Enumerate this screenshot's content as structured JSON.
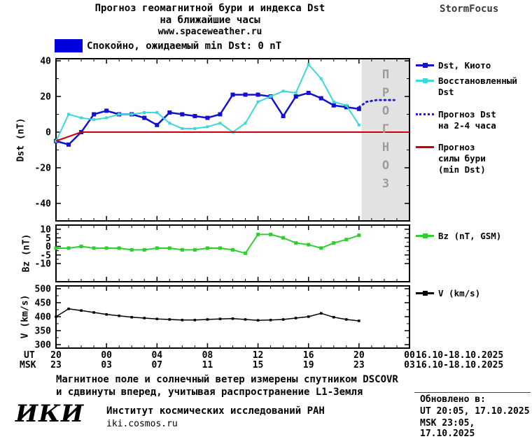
{
  "title": {
    "line1": "Прогноз геомагнитной бури и индекса Dst",
    "line2": "на ближайшие часы",
    "url": "www.spaceweather.ru"
  },
  "brand": "StormFocus",
  "status": {
    "label": "Спокойно, ожидаемый min Dst: 0 nT",
    "box_color": "#0000dd"
  },
  "colors": {
    "dst_kyoto": "#1212cc",
    "dst_restored": "#3cd8d8",
    "dst_forecast": "#1a1ae0",
    "storm_forecast": "#cc0000",
    "bz": "#33cc33",
    "v": "#000000",
    "forecast_region": "#e2e2e2",
    "watermark": "#9c9c9c"
  },
  "watermark": "ПРОГНОЗ",
  "axes": {
    "dst_label": "Dst (nT)",
    "bz_label": "Bz (nT)",
    "v_label": "V (km/s)"
  },
  "xaxis": {
    "tick_hours": [
      0,
      4,
      8,
      12,
      16,
      20,
      24,
      28
    ],
    "ut_prefix": "UT",
    "msk_prefix": "MSK",
    "ut_labels": [
      "20",
      "00",
      "04",
      "08",
      "12",
      "16",
      "20",
      "00"
    ],
    "msk_labels": [
      "23",
      "03",
      "07",
      "11",
      "15",
      "19",
      "23",
      "03"
    ],
    "ut_daterange": "16.10-18.10.2025",
    "msk_daterange": "16.10-18.10.2025"
  },
  "legend_entries": [
    {
      "id": "dst-kyoto",
      "label_lines": [
        "Dst, Киото"
      ],
      "color": "#1212cc",
      "style": "solid",
      "marker": true
    },
    {
      "id": "dst-restored",
      "label_lines": [
        "Восстановленный",
        "Dst"
      ],
      "color": "#3cd8d8",
      "style": "solid",
      "marker": true
    },
    {
      "id": "dst-forecast",
      "label_lines": [
        "Прогноз Dst",
        "на 2-4 часа"
      ],
      "color": "#1a1ae0",
      "style": "dotted",
      "marker": false
    },
    {
      "id": "storm-forecast",
      "label_lines": [
        "Прогноз",
        "силы бури",
        "(min Dst)"
      ],
      "color": "#cc0000",
      "style": "solid",
      "marker": false
    },
    {
      "id": "bz",
      "label_lines": [
        "Bz (nT, GSM)"
      ],
      "color": "#33cc33",
      "style": "solid",
      "marker": true
    },
    {
      "id": "v",
      "label_lines": [
        "V (km/s)"
      ],
      "color": "#000000",
      "style": "solid",
      "marker": true
    }
  ],
  "footnote": {
    "line1": "Магнитное поле и солнечный ветер измерены спутником DSCOVR",
    "line2": "и сдвинуты вперед, учитывая распространение L1-Земля"
  },
  "footer": {
    "logo": "ИКИ",
    "institute": "Институт космических исследований РАН",
    "site": "iki.cosmos.ru",
    "updated_label": "Обновлено в:",
    "updated_ut": "UT  20:05, 17.10.2025",
    "updated_msk": "MSK 23:05, 17.10.2025"
  },
  "chart_data": {
    "type": "line",
    "xlim_hours": [
      0,
      28
    ],
    "x_note": "hours along shared axis; ticks labeled in UT and MSK",
    "panels": [
      {
        "name": "Dst",
        "ylabel": "Dst (nT)",
        "yticks": [
          40,
          20,
          0,
          -20,
          -40
        ],
        "forecast_region": {
          "x_start": 24.2,
          "x_end": 28,
          "color": "#e2e2e2"
        },
        "series": [
          {
            "name": "dst-kyoto",
            "label": "Dst, Киото",
            "color": "#1212cc",
            "width": 2.5,
            "marker": "square",
            "marker_size": 6,
            "x": [
              0,
              1,
              2,
              3,
              4,
              5,
              6,
              7,
              8,
              9,
              10,
              11,
              12,
              13,
              14,
              15,
              16,
              17,
              18,
              19,
              20,
              21,
              22,
              23,
              24
            ],
            "y": [
              -5,
              -7,
              0,
              10,
              12,
              10,
              10,
              8,
              4,
              11,
              10,
              9,
              8,
              10,
              21,
              21,
              21,
              20,
              9,
              20,
              22,
              19,
              15,
              14,
              13
            ]
          },
          {
            "name": "dst-restored",
            "label": "Восстановленный Dst",
            "color": "#3cd8d8",
            "width": 2,
            "marker": "square",
            "marker_size": 4,
            "x": [
              0,
              1,
              2,
              3,
              4,
              5,
              6,
              7,
              8,
              9,
              10,
              11,
              12,
              13,
              14,
              15,
              16,
              17,
              18,
              19,
              20,
              21,
              22,
              23,
              24
            ],
            "y": [
              -5,
              10,
              8,
              7,
              8,
              10,
              10,
              11,
              11,
              5,
              2,
              2,
              3,
              5,
              0,
              5,
              17,
              20,
              23,
              22,
              38,
              30,
              17,
              15,
              4
            ]
          },
          {
            "name": "dst-forecast",
            "label": "Прогноз Dst на 2-4 часа",
            "color": "#1a1ae0",
            "width": 3,
            "dash": "1.5 5",
            "x": [
              24,
              24.6,
              25.4,
              26.2,
              26.8
            ],
            "y": [
              14,
              17,
              18,
              18,
              18
            ]
          },
          {
            "name": "storm-forecast",
            "label": "Прогноз силы бури (min Dst)",
            "color": "#cc0000",
            "width": 2,
            "x": [
              0,
              2,
              28
            ],
            "y": [
              -5,
              0,
              0
            ]
          }
        ]
      },
      {
        "name": "Bz",
        "ylabel": "Bz (nT)",
        "yticks": [
          10,
          5,
          0,
          -5,
          -10
        ],
        "series": [
          {
            "name": "bz",
            "label": "Bz (nT, GSM)",
            "color": "#33cc33",
            "width": 2,
            "marker": "square",
            "marker_size": 5,
            "x": [
              0,
              1,
              2,
              3,
              4,
              5,
              6,
              7,
              8,
              9,
              10,
              11,
              12,
              13,
              14,
              15,
              16,
              17,
              18,
              19,
              20,
              21,
              22,
              23,
              24
            ],
            "y": [
              -1,
              -1,
              0,
              -1,
              -1,
              -1,
              -2,
              -2,
              -1,
              -1,
              -2,
              -2,
              -1,
              -1,
              -2,
              -4,
              7,
              7,
              5,
              2,
              1,
              -1,
              2,
              4,
              6.5
            ]
          }
        ]
      },
      {
        "name": "V",
        "ylabel": "V (km/s)",
        "yticks": [
          500,
          450,
          400,
          350,
          300
        ],
        "series": [
          {
            "name": "v",
            "label": "V (km/s)",
            "color": "#000000",
            "width": 1.5,
            "marker": "square",
            "marker_size": 3.5,
            "x": [
              0,
              1,
              2,
              3,
              4,
              5,
              6,
              7,
              8,
              9,
              10,
              11,
              12,
              13,
              14,
              15,
              16,
              17,
              18,
              19,
              20,
              21,
              22,
              23,
              24
            ],
            "y": [
              400,
              428,
              422,
              415,
              408,
              403,
              398,
              395,
              392,
              390,
              388,
              388,
              390,
              392,
              393,
              390,
              387,
              388,
              390,
              395,
              400,
              412,
              398,
              390,
              385
            ]
          }
        ]
      }
    ]
  }
}
